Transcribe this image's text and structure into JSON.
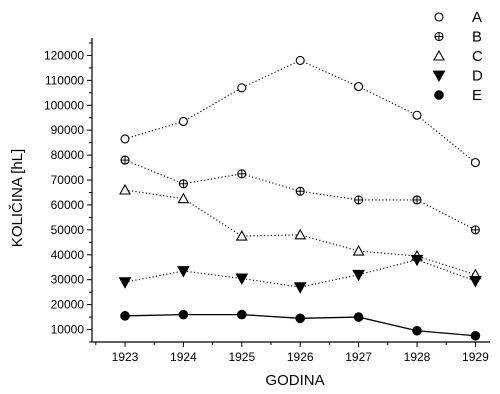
{
  "chart_data": {
    "type": "line",
    "title": "",
    "xlabel": "GODINA",
    "ylabel": "KOLIČINA [hL]",
    "x": [
      "1923",
      "1924",
      "1925",
      "1926",
      "1927",
      "1928",
      "1929"
    ],
    "ylim": [
      5000,
      127000
    ],
    "yticks": [
      "10000",
      "20000",
      "30000",
      "40000",
      "50000",
      "60000",
      "70000",
      "80000",
      "90000",
      "100000",
      "110000",
      "120000"
    ],
    "grid": false,
    "legend_position": "top-right",
    "series": [
      {
        "name": "A",
        "marker": "open-circle",
        "line": "dotted",
        "values": [
          86500,
          93500,
          107000,
          118000,
          107500,
          96000,
          77000
        ]
      },
      {
        "name": "B",
        "marker": "crossed-circle",
        "line": "dotted",
        "values": [
          78000,
          68500,
          72500,
          65500,
          62000,
          62000,
          50000
        ]
      },
      {
        "name": "C",
        "marker": "open-triangle-up",
        "line": "dotted",
        "values": [
          66000,
          62500,
          47500,
          48000,
          41500,
          39500,
          32000
        ]
      },
      {
        "name": "D",
        "marker": "filled-triangle-down",
        "line": "dotted",
        "values": [
          29000,
          33500,
          30500,
          27000,
          32000,
          38000,
          29500
        ]
      },
      {
        "name": "E",
        "marker": "filled-circle",
        "line": "solid",
        "values": [
          15500,
          16000,
          16000,
          14500,
          15000,
          9500,
          7500
        ]
      }
    ]
  }
}
